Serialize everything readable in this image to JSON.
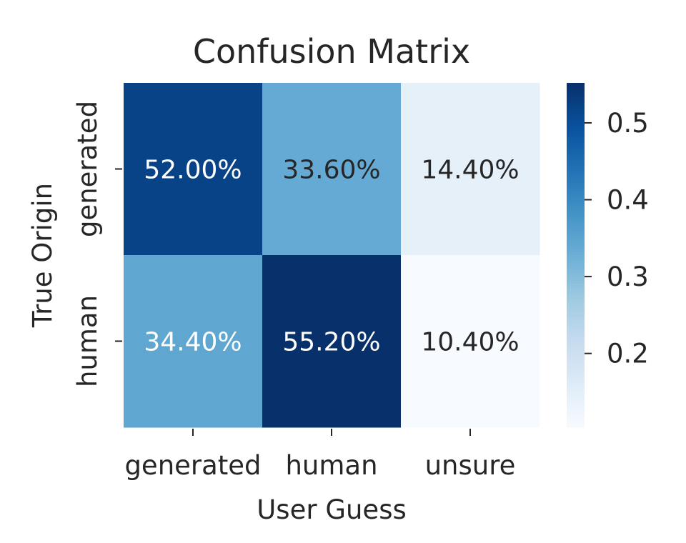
{
  "chart_data": {
    "type": "heatmap",
    "title": "Confusion Matrix",
    "xlabel": "User Guess",
    "ylabel": "True Origin",
    "x_categories": [
      "generated",
      "human",
      "unsure"
    ],
    "y_categories": [
      "generated",
      "human"
    ],
    "values": [
      [
        0.52,
        0.336,
        0.144
      ],
      [
        0.344,
        0.552,
        0.104
      ]
    ],
    "annotations": [
      [
        "52.00%",
        "33.60%",
        "14.40%"
      ],
      [
        "34.40%",
        "55.20%",
        "10.40%"
      ]
    ],
    "colormap": "Blues",
    "colorbar": {
      "ticks": [
        0.2,
        0.3,
        0.4,
        0.5
      ],
      "tick_labels": [
        "0.2",
        "0.3",
        "0.4",
        "0.5"
      ],
      "range": [
        0.104,
        0.552
      ]
    }
  }
}
